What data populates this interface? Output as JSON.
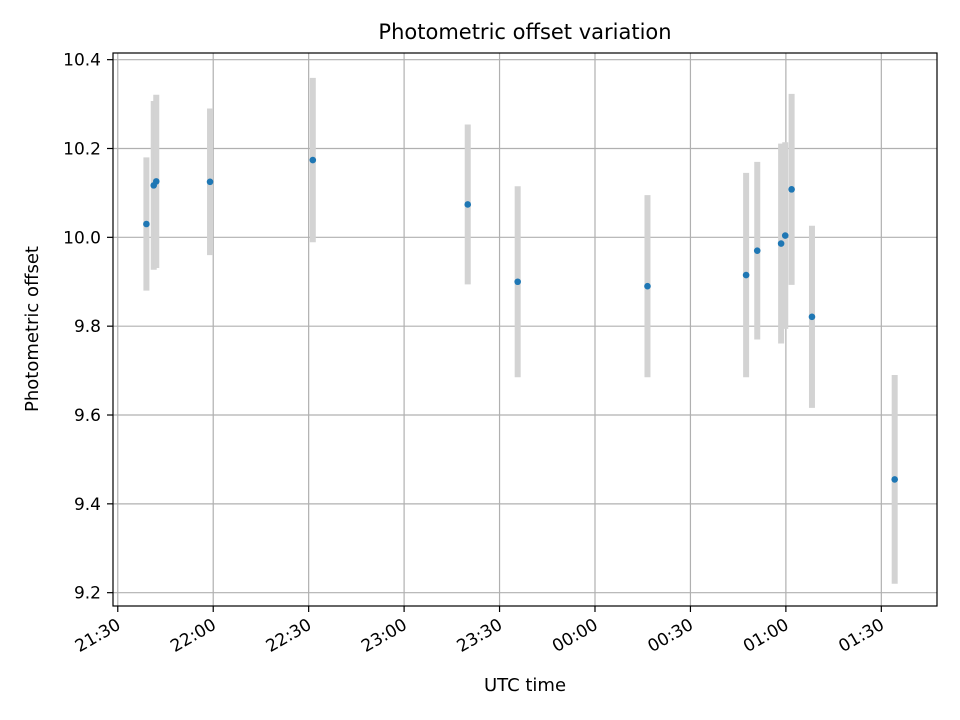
{
  "chart_data": {
    "type": "scatter",
    "title": "Photometric offset variation",
    "xlabel": "UTC time",
    "ylabel": "Photometric offset",
    "grid": true,
    "x_unit": "minutes since 21:30 UTC",
    "xlim": [
      -1.5,
      257.5
    ],
    "ylim": [
      9.17,
      10.415
    ],
    "x_ticks": [
      {
        "value": 0,
        "label": "21:30"
      },
      {
        "value": 30,
        "label": "22:00"
      },
      {
        "value": 60,
        "label": "22:30"
      },
      {
        "value": 90,
        "label": "23:00"
      },
      {
        "value": 120,
        "label": "23:30"
      },
      {
        "value": 150,
        "label": "00:00"
      },
      {
        "value": 180,
        "label": "00:30"
      },
      {
        "value": 210,
        "label": "01:00"
      },
      {
        "value": 240,
        "label": "01:30"
      }
    ],
    "y_ticks": [
      {
        "value": 9.2,
        "label": "9.2"
      },
      {
        "value": 9.4,
        "label": "9.4"
      },
      {
        "value": 9.6,
        "label": "9.6"
      },
      {
        "value": 9.8,
        "label": "9.8"
      },
      {
        "value": 10.0,
        "label": "10.0"
      },
      {
        "value": 10.2,
        "label": "10.2"
      },
      {
        "value": 10.4,
        "label": "10.4"
      }
    ],
    "series": [
      {
        "name": "Photometric offset",
        "color": "#1f77b4",
        "errorbar_color": "#d3d3d3",
        "points": [
          {
            "x": 9.0,
            "y": 10.03,
            "err": 0.15
          },
          {
            "x": 11.3,
            "y": 10.117,
            "err": 0.19
          },
          {
            "x": 12.1,
            "y": 10.126,
            "err": 0.195
          },
          {
            "x": 29.0,
            "y": 10.125,
            "err": 0.165
          },
          {
            "x": 61.3,
            "y": 10.174,
            "err": 0.185
          },
          {
            "x": 110.0,
            "y": 10.074,
            "err": 0.18
          },
          {
            "x": 125.7,
            "y": 9.9,
            "err": 0.215
          },
          {
            "x": 166.5,
            "y": 9.89,
            "err": 0.205
          },
          {
            "x": 197.5,
            "y": 9.915,
            "err": 0.23
          },
          {
            "x": 201.0,
            "y": 9.97,
            "err": 0.2
          },
          {
            "x": 208.5,
            "y": 9.986,
            "err": 0.225
          },
          {
            "x": 209.8,
            "y": 10.004,
            "err": 0.21
          },
          {
            "x": 211.8,
            "y": 10.108,
            "err": 0.215
          },
          {
            "x": 218.2,
            "y": 9.821,
            "err": 0.205
          },
          {
            "x": 244.2,
            "y": 9.455,
            "err": 0.235
          }
        ]
      }
    ]
  }
}
